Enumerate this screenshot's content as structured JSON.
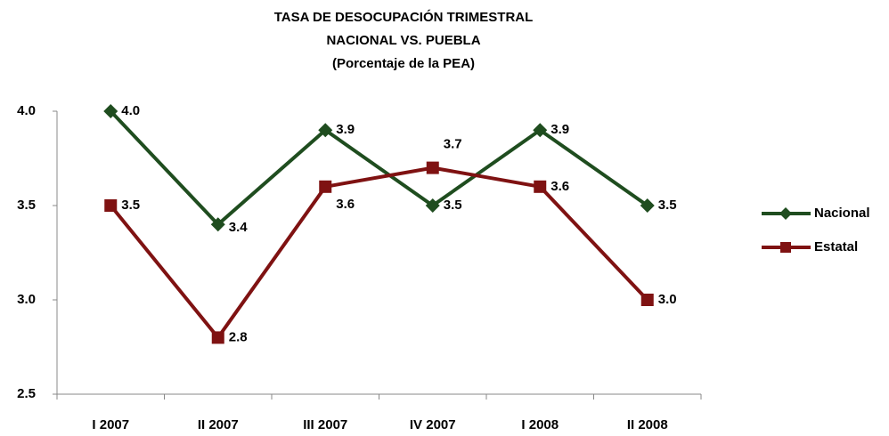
{
  "chart_data": {
    "type": "line",
    "title": [
      "TASA DE DESOCUPACIÓN TRIMESTRAL",
      "NACIONAL VS. PUEBLA",
      "(Porcentaje de la PEA)"
    ],
    "categories": [
      "I 2007",
      "II 2007",
      "III 2007",
      "IV 2007",
      "I 2008",
      "II 2008"
    ],
    "series": [
      {
        "name": "Nacional",
        "color": "#1f4d1f",
        "marker": "diamond",
        "values": [
          4.0,
          3.4,
          3.9,
          3.5,
          3.9,
          3.5
        ],
        "value_labels": [
          "4.0",
          "3.4",
          "3.9",
          "3.5",
          "3.9",
          "3.5"
        ]
      },
      {
        "name": "Estatal",
        "color": "#7f1212",
        "marker": "square",
        "values": [
          3.5,
          2.8,
          3.6,
          3.7,
          3.6,
          3.0
        ],
        "value_labels": [
          "3.5",
          "2.8",
          "3.6",
          "3.7",
          "3.6",
          "3.0"
        ]
      }
    ],
    "ylim": [
      2.5,
      4.0
    ],
    "yticks": [
      {
        "value": 2.5,
        "label": "2.5"
      },
      {
        "value": 3.0,
        "label": "3.0"
      },
      {
        "value": 3.5,
        "label": "3.5"
      },
      {
        "value": 4.0,
        "label": "4.0"
      }
    ],
    "grid": false,
    "legend": "right"
  }
}
